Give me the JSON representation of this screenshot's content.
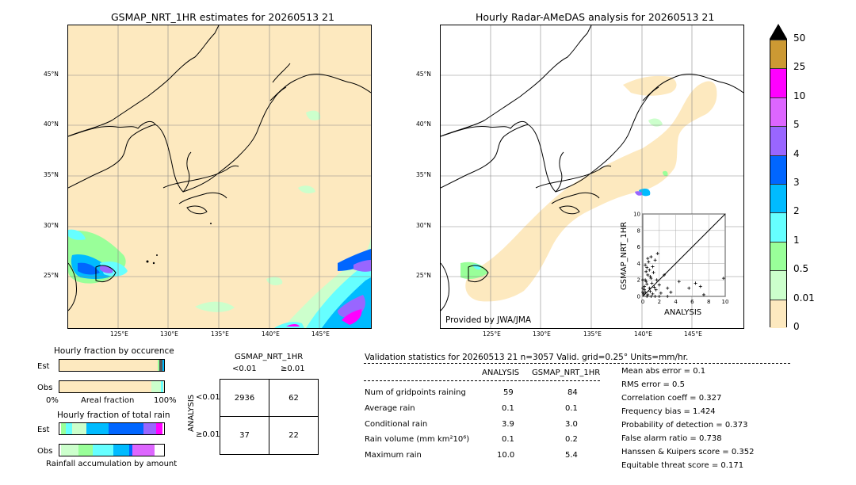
{
  "left_map": {
    "title": "GSMAP_NRT_1HR estimates for 20260513 21",
    "lat_ticks": [
      "45°N",
      "40°N",
      "35°N",
      "30°N",
      "25°N"
    ],
    "lon_ticks": [
      "125°E",
      "130°E",
      "135°E",
      "140°E",
      "145°E"
    ]
  },
  "right_map": {
    "title": "Hourly Radar-AMeDAS analysis for 20260513 21",
    "lat_ticks": [
      "45°N",
      "40°N",
      "35°N",
      "30°N",
      "25°N"
    ],
    "lon_ticks": [
      "125°E",
      "130°E",
      "135°E",
      "140°E",
      "145°E"
    ],
    "credit": "Provided by JWA/JMA"
  },
  "colorbar": {
    "labels": [
      "50",
      "25",
      "10",
      "5",
      "4",
      "3",
      "2",
      "1",
      "0.5",
      "0.01",
      "0"
    ],
    "colors": [
      "#cc9933",
      "#ff00ff",
      "#dd66ff",
      "#9966ff",
      "#0066ff",
      "#00bbff",
      "#66ffff",
      "#99ff99",
      "#ccffcc",
      "#fde9bf"
    ]
  },
  "occurrence": {
    "title": "Hourly fraction by occurence",
    "row_labels": [
      "Est",
      "Obs"
    ],
    "axis_left": "0%",
    "axis_mid": "Areal fraction",
    "axis_right": "100%"
  },
  "total_rain": {
    "title": "Hourly fraction of total rain",
    "row_labels": [
      "Est",
      "Obs"
    ],
    "caption": "Rainfall accumulation by amount"
  },
  "contingency": {
    "header": "GSMAP_NRT_1HR",
    "col_labels": [
      "<0.01",
      "≥0.01"
    ],
    "side_label": "ANALYSIS",
    "row_labels": [
      "<0.01",
      "≥0.01"
    ],
    "cells": [
      [
        "2936",
        "62"
      ],
      [
        "37",
        "22"
      ]
    ]
  },
  "validation": {
    "header": "Validation statistics for 20260513 21  n=3057 Valid. grid=0.25° Units=mm/hr.",
    "col_analysis": "ANALYSIS",
    "col_gsmap": "GSMAP_NRT_1HR",
    "rows": [
      {
        "label": "Num of gridpoints raining",
        "analysis": "59",
        "gsmap": "84"
      },
      {
        "label": "Average rain",
        "analysis": "0.1",
        "gsmap": "0.1"
      },
      {
        "label": "Conditional rain",
        "analysis": "3.9",
        "gsmap": "3.0"
      },
      {
        "label": "Rain volume (mm km²10⁶)",
        "analysis": "0.1",
        "gsmap": "0.2"
      },
      {
        "label": "Maximum rain",
        "analysis": "10.0",
        "gsmap": "5.4"
      }
    ],
    "scores": [
      "Mean abs error =    0.1",
      "RMS error =    0.5",
      "Correlation coeff =  0.327",
      "Frequency bias =  1.424",
      "Probability of detection =  0.373",
      "False alarm ratio =  0.738",
      "Hanssen & Kuipers score =  0.352",
      "Equitable threat score =  0.171"
    ]
  },
  "chart_data": {
    "type": "scatter",
    "title": "",
    "xlabel": "ANALYSIS",
    "ylabel": "GSMAP_NRT_1HR",
    "xlim": [
      0,
      10
    ],
    "ylim": [
      0,
      10
    ],
    "ticks": [
      "0",
      "2",
      "4",
      "6",
      "8",
      "10"
    ],
    "points": [
      [
        0.1,
        0.3
      ],
      [
        0.2,
        1.2
      ],
      [
        0.3,
        0.5
      ],
      [
        0.3,
        2.0
      ],
      [
        0.4,
        3.0
      ],
      [
        0.5,
        1.5
      ],
      [
        0.5,
        3.5
      ],
      [
        0.6,
        0.2
      ],
      [
        0.6,
        2.6
      ],
      [
        0.7,
        4.2
      ],
      [
        0.8,
        1.0
      ],
      [
        0.8,
        3.2
      ],
      [
        0.9,
        0.6
      ],
      [
        1.0,
        2.2
      ],
      [
        1.0,
        4.8
      ],
      [
        1.1,
        1.6
      ],
      [
        1.2,
        0.3
      ],
      [
        1.2,
        3.6
      ],
      [
        1.3,
        2.9
      ],
      [
        1.4,
        1.1
      ],
      [
        1.5,
        4.4
      ],
      [
        1.6,
        0.8
      ],
      [
        1.8,
        5.2
      ],
      [
        2.0,
        1.4
      ],
      [
        0.2,
        0.8
      ],
      [
        0.4,
        1.8
      ],
      [
        0.6,
        4.6
      ],
      [
        0.9,
        2.4
      ],
      [
        1.7,
        2.0
      ],
      [
        0.3,
        3.8
      ],
      [
        2.2,
        0.4
      ],
      [
        2.6,
        2.6
      ],
      [
        3.0,
        1.0
      ],
      [
        3.4,
        0.5
      ],
      [
        4.4,
        1.8
      ],
      [
        5.6,
        1.0
      ],
      [
        6.4,
        1.6
      ],
      [
        7.0,
        1.2
      ],
      [
        7.4,
        0.2
      ],
      [
        9.8,
        2.2
      ],
      [
        1.0,
        0.0
      ],
      [
        1.5,
        0.0
      ],
      [
        2.0,
        0.0
      ],
      [
        3.0,
        0.0
      ],
      [
        0.5,
        0.0
      ],
      [
        0.0,
        1.0
      ],
      [
        0.0,
        2.0
      ],
      [
        0.0,
        0.5
      ]
    ]
  }
}
